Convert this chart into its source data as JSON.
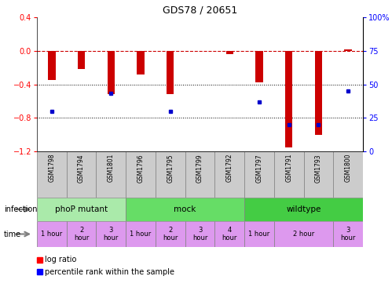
{
  "title": "GDS78 / 20651",
  "samples": [
    "GSM1798",
    "GSM1794",
    "GSM1801",
    "GSM1796",
    "GSM1795",
    "GSM1799",
    "GSM1792",
    "GSM1797",
    "GSM1791",
    "GSM1793",
    "GSM1800"
  ],
  "log_ratio": [
    -0.35,
    -0.22,
    -0.52,
    -0.28,
    -0.52,
    0.0,
    -0.04,
    -0.38,
    -1.15,
    -1.0,
    0.02
  ],
  "percentile": [
    30,
    null,
    43,
    null,
    30,
    null,
    null,
    37,
    20,
    20,
    45
  ],
  "ylim_left": [
    -1.2,
    0.4
  ],
  "ylim_right": [
    0,
    100
  ],
  "yticks_left": [
    0.4,
    0,
    -0.4,
    -0.8,
    -1.2
  ],
  "yticks_right": [
    100,
    75,
    50,
    25,
    0
  ],
  "infection_groups": [
    {
      "label": "phoP mutant",
      "start": 0,
      "end": 3,
      "color": "#aaeaaa"
    },
    {
      "label": "mock",
      "start": 3,
      "end": 7,
      "color": "#66dd66"
    },
    {
      "label": "wildtype",
      "start": 7,
      "end": 11,
      "color": "#44cc44"
    }
  ],
  "time_spans": [
    {
      "start": 0,
      "end": 1,
      "label": "1 hour"
    },
    {
      "start": 1,
      "end": 2,
      "label": "2\nhour"
    },
    {
      "start": 2,
      "end": 3,
      "label": "3\nhour"
    },
    {
      "start": 3,
      "end": 4,
      "label": "1 hour"
    },
    {
      "start": 4,
      "end": 5,
      "label": "2\nhour"
    },
    {
      "start": 5,
      "end": 6,
      "label": "3\nhour"
    },
    {
      "start": 6,
      "end": 7,
      "label": "4\nhour"
    },
    {
      "start": 7,
      "end": 8,
      "label": "1 hour"
    },
    {
      "start": 8,
      "end": 10,
      "label": "2 hour"
    },
    {
      "start": 10,
      "end": 11,
      "label": "3\nhour"
    }
  ],
  "bar_color": "#cc0000",
  "point_color": "#0000cc",
  "zero_line_color": "#cc0000",
  "sample_box_color": "#cccccc",
  "time_color": "#dd99ee"
}
